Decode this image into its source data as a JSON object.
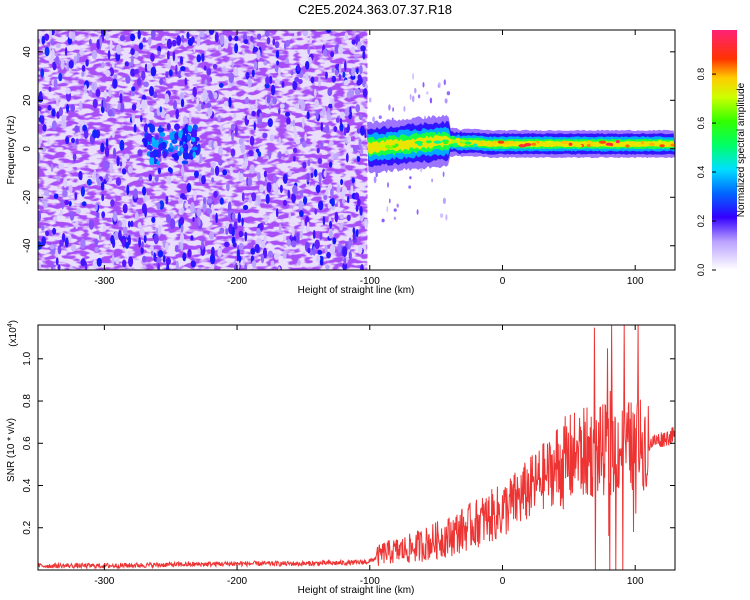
{
  "figure": {
    "title": "C2E5.2024.363.07.37.R18"
  },
  "chart_data": [
    {
      "type": "heatmap",
      "title": "C2E5.2024.363.07.37.R18",
      "xlabel": "Height of straight line (km)",
      "ylabel": "Frequency (Hz)",
      "xlim": [
        -350,
        130
      ],
      "ylim": [
        -50,
        49
      ],
      "x_ticks": [
        -300,
        -200,
        -100,
        0,
        100
      ],
      "x_tick_labels": [
        "-300",
        "-200",
        "-100",
        "0",
        "100"
      ],
      "y_ticks": [
        -40,
        -20,
        0,
        20,
        40
      ],
      "y_tick_labels": [
        "-40",
        "-20",
        "0",
        "20",
        "40"
      ],
      "colorbar": {
        "label": "Normalized spectral amplitude",
        "range": [
          0,
          0.98
        ],
        "ticks": [
          0.0,
          0.2,
          0.4,
          0.6,
          0.8
        ],
        "tick_labels": [
          "0.0",
          "0.2",
          "0.4",
          "0.6",
          "0.8"
        ],
        "colormap": "rainbow (white-violet-blue-cyan-green-yellow-red-magenta)"
      },
      "regions": [
        {
          "x_range": [
            -350,
            -102
          ],
          "description": "broadband noise",
          "amplitude_range": [
            0.05,
            0.3
          ]
        },
        {
          "x_range": [
            -270,
            -230
          ],
          "freq_center": 2,
          "amplitude_range": [
            0.2,
            0.4
          ]
        },
        {
          "x_range": [
            -102,
            130
          ],
          "freq_center": 2,
          "amplitude_range": [
            0.3,
            0.95
          ]
        }
      ],
      "ridge": {
        "x": [
          -100,
          -90,
          -80,
          -70,
          -60,
          -50,
          -40,
          -30,
          -20,
          -10,
          0,
          20,
          40,
          60,
          80,
          100,
          120,
          130
        ],
        "freq": [
          0.5,
          1.0,
          1.5,
          2.0,
          2.5,
          3.0,
          3.0,
          2.5,
          2.5,
          2.0,
          2.0,
          2.0,
          2.0,
          2.0,
          2.0,
          2.0,
          2.0,
          2.0
        ]
      }
    },
    {
      "type": "line",
      "xlabel": "Height of straight line (km)",
      "ylabel": "SNR (10 * v/v)",
      "scale_label": "(x10",
      "scale_exponent": "4",
      "scale_suffix": ")",
      "xlim": [
        -350,
        130
      ],
      "ylim": [
        0,
        1.16
      ],
      "x_ticks": [
        -300,
        -200,
        -100,
        0,
        100
      ],
      "x_tick_labels": [
        "-300",
        "-200",
        "-100",
        "0",
        "100"
      ],
      "y_ticks": [
        0.2,
        0.4,
        0.6,
        0.8,
        1.0
      ],
      "y_tick_labels": [
        "0.2",
        "0.4",
        "0.6",
        "0.8",
        "1.0"
      ],
      "series": [
        {
          "color": "#ee3333",
          "x": [
            -350,
            -300,
            -250,
            -200,
            -150,
            -110,
            -100,
            -95,
            -90,
            -80,
            -70,
            -60,
            -50,
            -40,
            -30,
            -20,
            -10,
            0,
            10,
            20,
            30,
            40,
            50,
            60,
            70,
            80,
            90,
            100,
            110,
            120,
            130
          ],
          "y": [
            0.02,
            0.02,
            0.025,
            0.03,
            0.03,
            0.035,
            0.04,
            0.06,
            0.08,
            0.09,
            0.1,
            0.12,
            0.14,
            0.16,
            0.19,
            0.22,
            0.25,
            0.28,
            0.33,
            0.38,
            0.44,
            0.48,
            0.52,
            0.55,
            0.56,
            0.57,
            0.58,
            0.59,
            0.6,
            0.62,
            0.64
          ]
        }
      ]
    }
  ]
}
